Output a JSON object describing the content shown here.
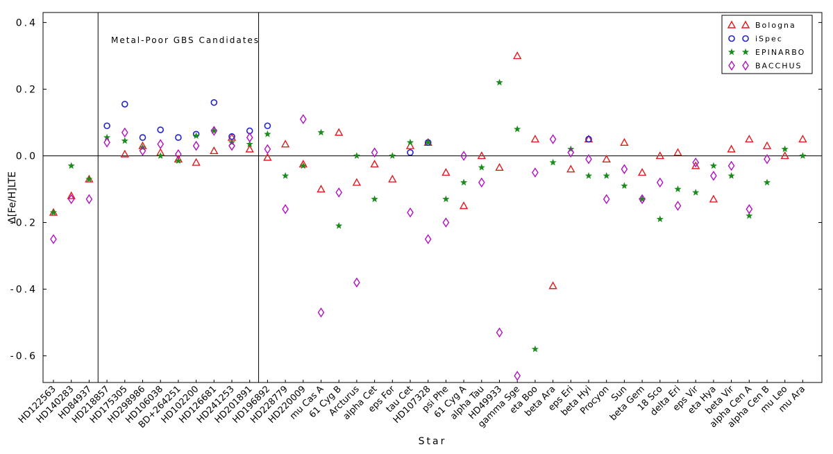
{
  "chart_data": {
    "type": "scatter",
    "annotation": "Metal-Poor GBS Candidates",
    "xlabel": "Star",
    "ylabel": "Δ[Fe/H]LTE",
    "ylim": [
      -0.68,
      0.43
    ],
    "yticks": [
      0.4,
      0.2,
      0.0,
      -0.2,
      -0.4,
      -0.6
    ],
    "ytick_labels": [
      "0.4",
      "0.2",
      "0.0",
      "-0.2",
      "-0.4",
      "-0.6"
    ],
    "legend_position": "top-right",
    "group_boundaries_after_index": [
      2,
      11
    ],
    "categories": [
      "HD122563",
      "HD140283",
      "HD84937",
      "HD218857",
      "HD175305",
      "HD298986",
      "HD106038",
      "BD+264251",
      "HD102200",
      "HD126681",
      "HD241253",
      "HD201891",
      "HD196892",
      "HD228779",
      "HD220009",
      "mu Cas A",
      "61 Cyg B",
      "Arcturus",
      "alpha Cet",
      "eps For",
      "tau Cet",
      "HD107328",
      "psi Phe",
      "61 Cyg A",
      "alpha Tau",
      "HD49933",
      "gamma Sge",
      "eta Boo",
      "beta Ara",
      "eps Eri",
      "beta Hyi",
      "Procyon",
      "Sun",
      "beta Gem",
      "18 Sco",
      "delta Eri",
      "eps Vir",
      "eta Hya",
      "beta Vir",
      "alpha Cen A",
      "alpha Cen B",
      "mu Leo",
      "mu Ara"
    ],
    "series": [
      {
        "name": "Bologna",
        "marker": "triangle",
        "color": "#e31a1c",
        "values": [
          -0.17,
          -0.12,
          -0.07,
          null,
          0.005,
          0.03,
          0.01,
          -0.01,
          -0.02,
          0.015,
          0.055,
          0.02,
          -0.005,
          0.035,
          -0.025,
          -0.1,
          0.07,
          -0.08,
          -0.025,
          -0.07,
          0.03,
          0.04,
          -0.05,
          -0.15,
          0.0,
          -0.035,
          0.3,
          0.05,
          -0.39,
          -0.04,
          0.05,
          -0.01,
          0.04,
          -0.05,
          0.0,
          0.01,
          -0.03,
          -0.13,
          0.02,
          0.05,
          0.03,
          0.0,
          0.05
        ]
      },
      {
        "name": "iSpec",
        "marker": "circle",
        "color": "#1f1fd6",
        "values": [
          null,
          null,
          null,
          0.09,
          0.155,
          0.055,
          0.078,
          0.055,
          0.065,
          0.16,
          0.058,
          0.075,
          0.09,
          null,
          null,
          null,
          null,
          null,
          null,
          null,
          0.01,
          0.04,
          null,
          null,
          null,
          null,
          null,
          null,
          null,
          null,
          0.05,
          null,
          null,
          null,
          null,
          null,
          null,
          null,
          null,
          null,
          null,
          null,
          null
        ]
      },
      {
        "name": "EPINARBO",
        "marker": "star",
        "color": "#1a8c1a",
        "values": [
          -0.17,
          -0.03,
          -0.07,
          0.055,
          0.045,
          0.025,
          0.0,
          -0.015,
          0.06,
          0.075,
          0.04,
          0.035,
          0.065,
          -0.06,
          -0.03,
          0.07,
          -0.21,
          0.0,
          -0.13,
          0.0,
          0.04,
          0.04,
          -0.13,
          -0.08,
          -0.035,
          0.22,
          0.08,
          -0.58,
          -0.02,
          0.02,
          -0.06,
          -0.06,
          -0.09,
          -0.13,
          -0.19,
          -0.1,
          -0.11,
          -0.03,
          -0.06,
          -0.18,
          -0.08,
          0.02,
          0.0
        ]
      },
      {
        "name": "BACCHUS",
        "marker": "diamond",
        "color": "#b010c0",
        "values": [
          -0.25,
          -0.13,
          -0.13,
          0.04,
          0.07,
          0.015,
          0.035,
          0.005,
          0.03,
          0.075,
          0.03,
          0.055,
          0.02,
          -0.16,
          0.11,
          -0.47,
          -0.11,
          -0.38,
          0.01,
          null,
          -0.17,
          -0.25,
          -0.2,
          0.0,
          -0.08,
          -0.53,
          -0.66,
          -0.05,
          0.05,
          0.01,
          -0.01,
          -0.13,
          -0.04,
          -0.13,
          -0.08,
          -0.15,
          -0.02,
          -0.06,
          -0.03,
          -0.16,
          -0.01,
          null,
          null
        ]
      }
    ]
  }
}
